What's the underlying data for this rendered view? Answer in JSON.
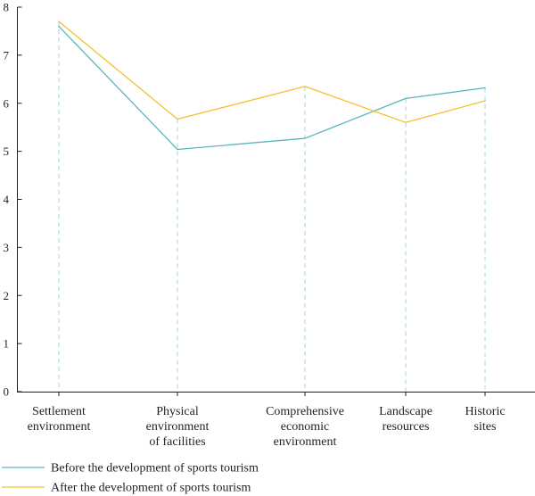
{
  "chart_data": {
    "type": "line",
    "title": "",
    "xlabel": "",
    "ylabel": "",
    "ylim": [
      0,
      8
    ],
    "yticks": [
      0,
      1,
      2,
      3,
      4,
      5,
      6,
      7,
      8
    ],
    "categories": [
      [
        "Settlement",
        "environment"
      ],
      [
        "Physical",
        "environment",
        "of facilities"
      ],
      [
        "Comprehensive",
        "economic",
        "environment"
      ],
      [
        "Landscape",
        "resources"
      ],
      [
        "Historic",
        "sites"
      ]
    ],
    "series": [
      {
        "name": "Before the development of sports tourism",
        "color": "#5bb5b9",
        "values": [
          7.6,
          5.04,
          5.27,
          6.1,
          6.32
        ]
      },
      {
        "name": "After the development of sports tourism",
        "color": "#f5c12e",
        "values": [
          7.7,
          5.67,
          6.35,
          5.6,
          6.05
        ]
      }
    ],
    "dropline_color": "#9fd4ea",
    "legend_position": "bottom-left",
    "grid": false
  }
}
